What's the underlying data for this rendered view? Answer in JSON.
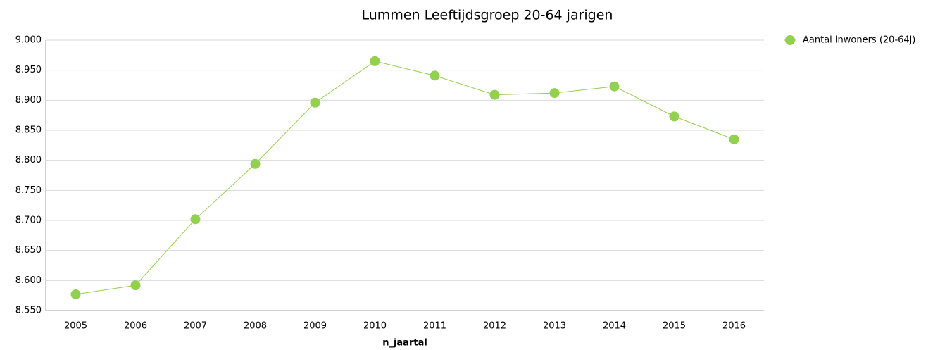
{
  "chart_data": {
    "type": "line",
    "title": "Lummen  Leeftijdsgroep 20-64 jarigen",
    "x_label": "n_jaartal",
    "categories": [
      "2005",
      "2006",
      "2007",
      "2008",
      "2009",
      "2010",
      "2011",
      "2012",
      "2013",
      "2014",
      "2015",
      "2016"
    ],
    "series": [
      {
        "name": "Aantal inwoners  (20-64j)",
        "color": "#92d050",
        "values": [
          8577,
          8592,
          8702,
          8794,
          8896,
          8965,
          8941,
          8909,
          8912,
          8923,
          8873,
          8835
        ]
      }
    ],
    "ylim": [
      8550,
      9000
    ],
    "yticks": [
      {
        "value": 8550,
        "label": "8.550"
      },
      {
        "value": 8600,
        "label": "8.600"
      },
      {
        "value": 8650,
        "label": "8.650"
      },
      {
        "value": 8700,
        "label": "8.700"
      },
      {
        "value": 8750,
        "label": "8.750"
      },
      {
        "value": 8800,
        "label": "8.800"
      },
      {
        "value": 8850,
        "label": "8.850"
      },
      {
        "value": 8900,
        "label": "8.900"
      },
      {
        "value": 8950,
        "label": "8.950"
      },
      {
        "value": 9000,
        "label": "9.000"
      }
    ],
    "grid": true,
    "legend": "right"
  }
}
